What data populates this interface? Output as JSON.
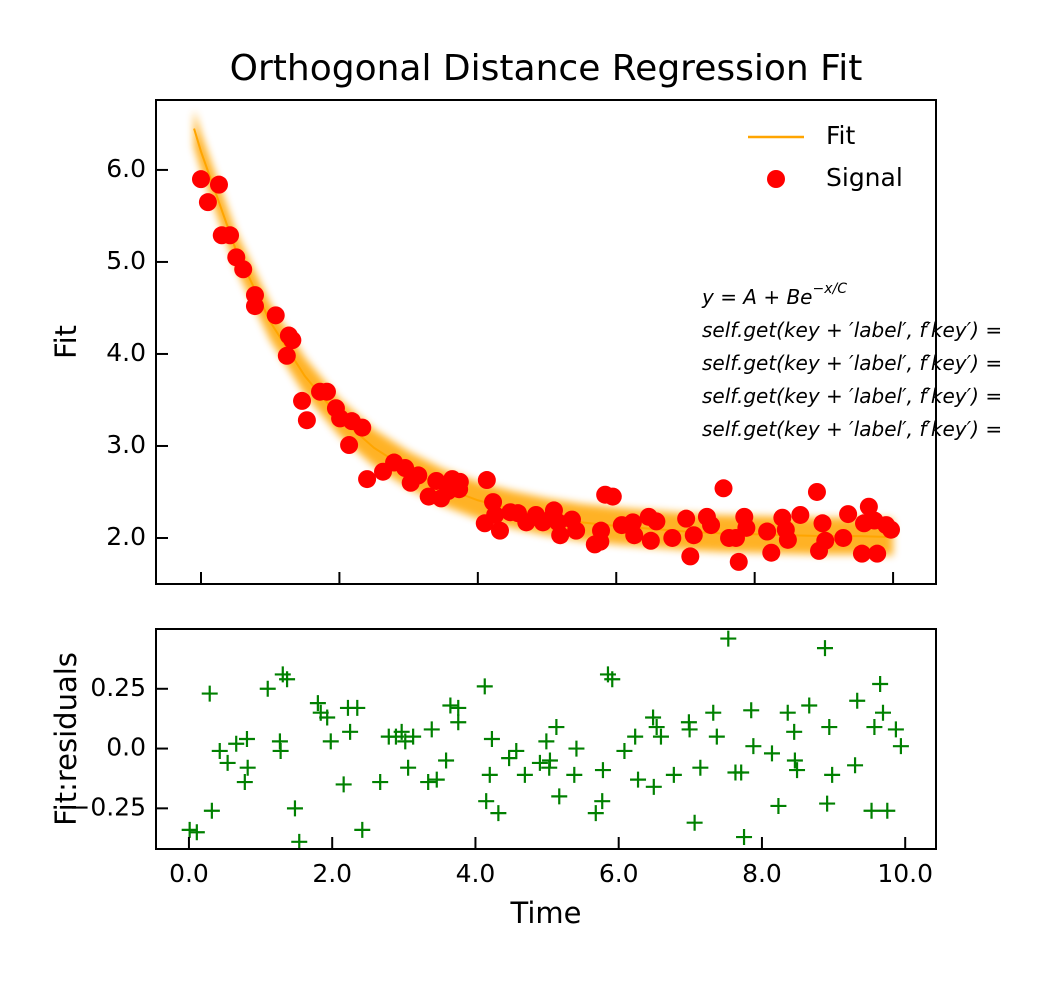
{
  "chart_data": [
    {
      "type": "scatter",
      "title": "Orthogonal Distance Regression  Fit",
      "ylabel": "Fit",
      "xlim": [
        -0.65,
        10.62
      ],
      "ylim": [
        1.5,
        6.76
      ],
      "xticks": [
        0,
        2,
        4,
        6,
        8,
        10
      ],
      "xticklabels": false,
      "yticks": [
        {
          "value": 2,
          "label": "2.0"
        },
        {
          "value": 3,
          "label": "3.0"
        },
        {
          "value": 4,
          "label": "4.0"
        },
        {
          "value": 5,
          "label": "5.0"
        },
        {
          "value": 6,
          "label": "6.0"
        }
      ],
      "legend": "upper right",
      "band": {
        "color": "#ffa500",
        "upper": [
          6.65,
          6.4,
          5.34,
          4.55,
          3.96,
          3.51,
          3.18,
          2.94,
          2.75,
          2.61,
          2.51,
          2.43,
          2.37,
          2.33,
          2.3,
          2.27,
          2.25,
          2.24,
          2.23,
          2.22,
          2.22,
          2.21
        ],
        "lower": [
          6.25,
          6.0,
          4.94,
          4.15,
          3.56,
          3.11,
          2.78,
          2.54,
          2.35,
          2.21,
          2.11,
          2.03,
          1.97,
          1.93,
          1.9,
          1.87,
          1.85,
          1.84,
          1.83,
          1.82,
          1.82,
          1.81
        ]
      },
      "series": [
        {
          "name": "Fit",
          "color": "#ffa500",
          "style": "line",
          "x": [
            -0.1,
            0,
            0.5,
            1,
            1.5,
            2,
            2.5,
            3,
            3.5,
            4,
            4.5,
            5,
            5.5,
            6,
            6.5,
            7,
            7.5,
            8,
            8.5,
            9,
            9.5,
            10
          ],
          "values": [
            6.45,
            6.2,
            5.14,
            4.35,
            3.76,
            3.31,
            2.98,
            2.74,
            2.55,
            2.41,
            2.31,
            2.23,
            2.17,
            2.13,
            2.1,
            2.07,
            2.05,
            2.04,
            2.03,
            2.02,
            2.02,
            2.01
          ]
        },
        {
          "name": "Signal",
          "color": "#ff0000",
          "style": "circle",
          "x": [
            0,
            0.1,
            0.26,
            0.3,
            0.42,
            0.51,
            0.61,
            0.78,
            0.78,
            1.08,
            1.24,
            1.27,
            1.32,
            1.46,
            1.53,
            1.72,
            1.82,
            1.95,
            2.01,
            2.14,
            2.18,
            2.33,
            2.4,
            2.63,
            2.79,
            2.95,
            3.03,
            3.14,
            3.29,
            3.4,
            3.47,
            3.57,
            3.63,
            3.73,
            3.74,
            4.13,
            4.1,
            4.22,
            4.25,
            4.32,
            4.47,
            4.58,
            4.7,
            4.84,
            4.94,
            5.07,
            5.1,
            5.16,
            5.19,
            5.36,
            5.42,
            5.69,
            5.77,
            5.78,
            5.84,
            5.95,
            6.08,
            6.24,
            6.26,
            6.47,
            6.5,
            6.58,
            6.81,
            7.01,
            7.07,
            7.12,
            7.31,
            7.37,
            7.55,
            7.63,
            7.73,
            7.77,
            7.85,
            7.88,
            8.18,
            8.24,
            8.4,
            8.45,
            8.48,
            8.66,
            8.9,
            8.93,
            8.98,
            9.02,
            9.28,
            9.35,
            9.55,
            9.58,
            9.65,
            9.73,
            9.77,
            9.9,
            9.97
          ],
          "values": [
            5.9,
            5.65,
            5.84,
            5.29,
            5.29,
            5.05,
            4.92,
            4.64,
            4.52,
            4.42,
            3.98,
            4.2,
            4.15,
            3.49,
            3.28,
            3.59,
            3.59,
            3.41,
            3.3,
            3.01,
            3.27,
            3.2,
            2.64,
            2.72,
            2.82,
            2.76,
            2.6,
            2.68,
            2.45,
            2.62,
            2.43,
            2.51,
            2.64,
            2.53,
            2.61,
            2.63,
            2.16,
            2.39,
            2.25,
            2.08,
            2.28,
            2.27,
            2.17,
            2.25,
            2.17,
            2.22,
            2.3,
            2.17,
            2.03,
            2.2,
            2.08,
            1.93,
            1.96,
            2.08,
            2.47,
            2.45,
            2.14,
            2.17,
            2.03,
            2.23,
            1.97,
            2.18,
            2.0,
            2.21,
            1.8,
            2.03,
            2.23,
            2.14,
            2.54,
            2.0,
            2.0,
            1.74,
            2.23,
            2.11,
            2.07,
            1.84,
            2.22,
            2.09,
            1.98,
            2.25,
            2.5,
            1.86,
            2.16,
            1.97,
            2.0,
            2.26,
            1.83,
            2.16,
            2.34,
            2.19,
            1.83,
            2.14,
            2.09
          ]
        }
      ],
      "annotations": [
        {
          "text": "y = A + Be",
          "superscript": "−x/C"
        },
        {
          "text": "self.get(key + ′label′, f′key′) ="
        },
        {
          "text": "self.get(key + ′label′, f′key′) ="
        },
        {
          "text": "self.get(key + ′label′, f′key′) ="
        },
        {
          "text": "self.get(key + ′label′, f′key′) ="
        }
      ]
    },
    {
      "type": "scatter",
      "xlabel": "Time",
      "ylabel": "Fit:residuals",
      "xlim": [
        -0.46,
        10.43
      ],
      "ylim": [
        -0.42,
        0.5
      ],
      "xticks": [
        {
          "value": 0,
          "label": "0.0"
        },
        {
          "value": 2,
          "label": "2.0"
        },
        {
          "value": 4,
          "label": "4.0"
        },
        {
          "value": 6,
          "label": "6.0"
        },
        {
          "value": 8,
          "label": "8.0"
        },
        {
          "value": 10,
          "label": "10.0"
        }
      ],
      "yticks": [
        {
          "value": -0.25,
          "label": "−0.25"
        },
        {
          "value": 0,
          "label": "0.0"
        },
        0.25
      ],
      "series": [
        {
          "color": "#008000",
          "style": "plus",
          "x": [
            0.01,
            0.11,
            0.29,
            0.32,
            0.43,
            0.54,
            0.66,
            0.78,
            0.81,
            0.82,
            1.1,
            1.27,
            1.28,
            1.31,
            1.37,
            1.48,
            1.54,
            1.8,
            1.84,
            1.93,
            1.98,
            2.16,
            2.22,
            2.25,
            2.35,
            2.42,
            2.67,
            2.79,
            2.89,
            2.97,
            3.02,
            3.06,
            3.13,
            3.34,
            3.39,
            3.46,
            3.59,
            3.65,
            3.76,
            3.76,
            4.15,
            4.13,
            4.23,
            4.2,
            4.32,
            4.47,
            4.57,
            4.69,
            4.9,
            4.99,
            5.03,
            5.04,
            5.13,
            5.17,
            5.38,
            5.41,
            5.68,
            5.77,
            5.78,
            5.85,
            5.91,
            6.08,
            6.23,
            6.27,
            6.48,
            6.49,
            6.53,
            6.59,
            6.77,
            6.98,
            6.99,
            7.06,
            7.14,
            7.32,
            7.37,
            7.53,
            7.63,
            7.71,
            7.75,
            7.85,
            7.88,
            8.14,
            8.23,
            8.36,
            8.45,
            8.46,
            8.49,
            8.66,
            8.88,
            8.91,
            8.94,
            8.98,
            9.3,
            9.33,
            9.53,
            9.57,
            9.65,
            9.69,
            9.75,
            9.87,
            9.94
          ],
          "values": [
            -0.34,
            -0.35,
            0.23,
            -0.26,
            -0.01,
            -0.06,
            0.02,
            -0.14,
            0.04,
            -0.08,
            0.25,
            0.03,
            -0.01,
            0.31,
            0.29,
            -0.25,
            -0.39,
            0.19,
            0.15,
            0.13,
            0.03,
            -0.15,
            0.17,
            0.07,
            0.17,
            -0.34,
            -0.14,
            0.05,
            0.05,
            0.07,
            0.03,
            -0.08,
            0.05,
            -0.14,
            0.08,
            -0.13,
            -0.05,
            0.18,
            0.17,
            0.11,
            -0.22,
            0.26,
            0.04,
            -0.11,
            -0.27,
            -0.04,
            -0.01,
            -0.11,
            -0.06,
            0.03,
            -0.08,
            -0.05,
            0.09,
            -0.2,
            -0.11,
            0.0,
            -0.27,
            -0.22,
            -0.09,
            0.31,
            0.29,
            -0.01,
            0.05,
            -0.13,
            0.13,
            -0.16,
            0.09,
            0.05,
            -0.11,
            0.11,
            0.08,
            -0.31,
            -0.08,
            0.15,
            0.05,
            0.46,
            -0.1,
            -0.1,
            -0.37,
            0.16,
            0.01,
            -0.02,
            -0.24,
            0.15,
            0.07,
            -0.05,
            -0.09,
            0.18,
            0.42,
            -0.23,
            0.09,
            -0.11,
            -0.07,
            0.2,
            -0.26,
            0.09,
            0.27,
            0.15,
            -0.26,
            0.08,
            0.01
          ]
        }
      ]
    }
  ]
}
